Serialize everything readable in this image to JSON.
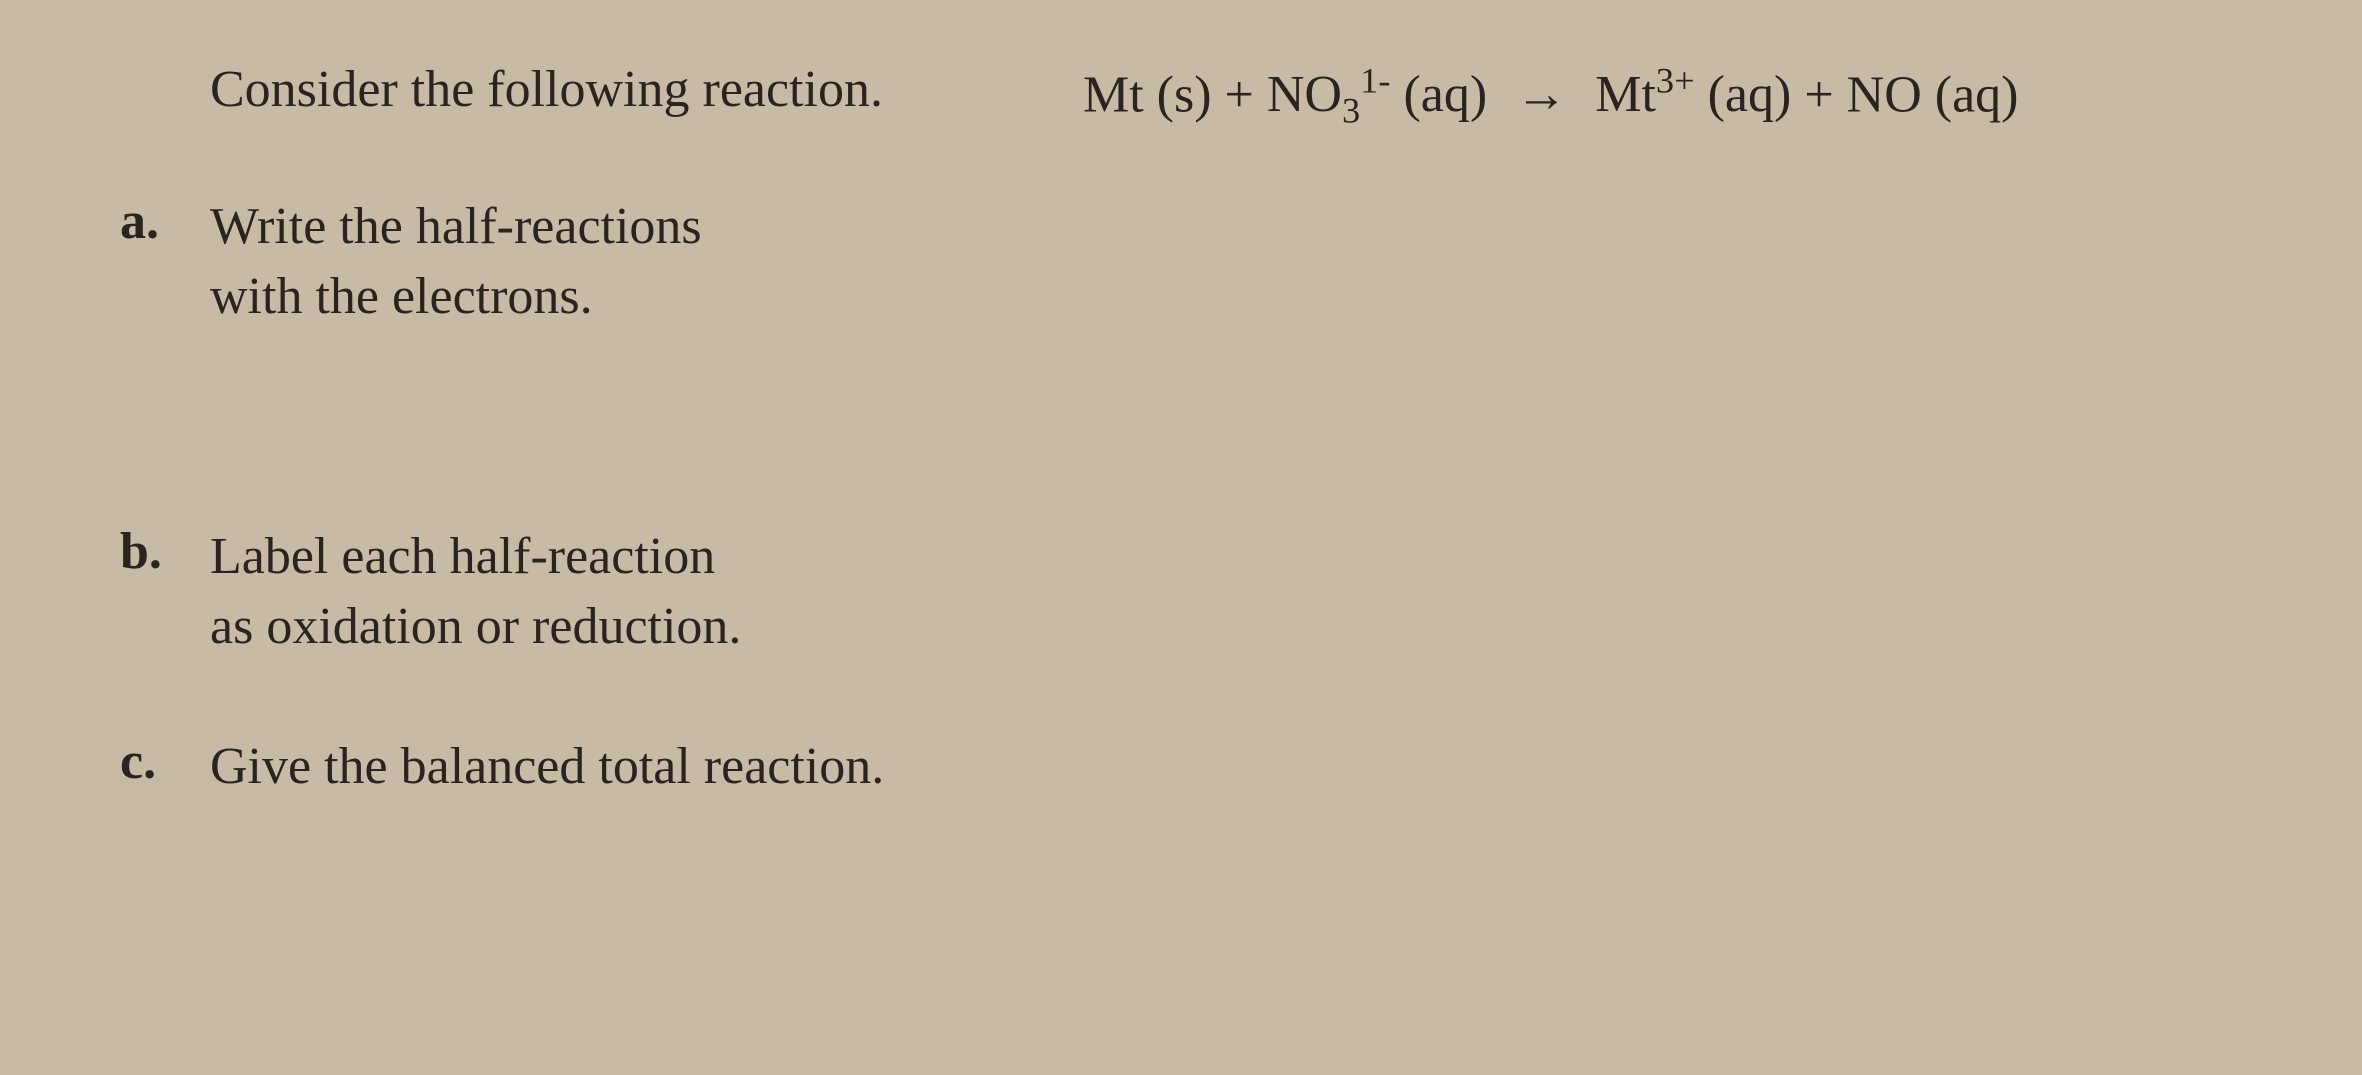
{
  "background_color": "#c8bba5",
  "text_color": "#2a2420",
  "font_family": "Times New Roman",
  "prompt": "Consider the following reaction.",
  "equation": {
    "reactant1": "Mt (s)",
    "plus1": "+",
    "reactant2_base": "NO",
    "reactant2_sub": "3",
    "reactant2_sup": "1-",
    "reactant2_state": "(aq)",
    "arrow": "→",
    "product1_base": "Mt",
    "product1_sup": "3+",
    "product1_state": "(aq)",
    "plus2": "+",
    "product2": "NO (aq)"
  },
  "questions": [
    {
      "label": "a.",
      "line1": "Write the half-reactions",
      "line2": "with the electrons."
    },
    {
      "label": "b.",
      "line1": "Label each half-reaction",
      "line2": "as   oxidation or reduction."
    },
    {
      "label": "c.",
      "line1": "Give the balanced total reaction.",
      "line2": ""
    }
  ]
}
